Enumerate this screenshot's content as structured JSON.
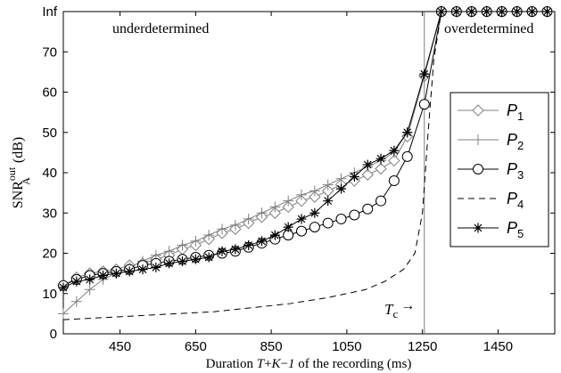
{
  "chart_data": {
    "type": "line",
    "xlabel": {
      "prefix": "Duration ",
      "var1": "T",
      "plus1": "+",
      "var2": "K",
      "minus": "−",
      "var3": "1",
      "suffix": " of the recording (ms)"
    },
    "ylabel": {
      "base": "SNR",
      "sup": "out",
      "sub": "A",
      "unit": " (dB)"
    },
    "xlim": [
      300,
      1600
    ],
    "ylim": [
      0,
      80
    ],
    "xticks": [
      450,
      650,
      850,
      1050,
      1250,
      1450
    ],
    "xtick_labels": [
      "450",
      "650",
      "850",
      "1050",
      "1250",
      "1450"
    ],
    "yticks": [
      0,
      10,
      20,
      30,
      40,
      50,
      60,
      70,
      80
    ],
    "ytick_labels": [
      "0",
      "10",
      "20",
      "30",
      "40",
      "50",
      "60",
      "70",
      "Inf"
    ],
    "inf_value": 80,
    "annotations": {
      "left_region": "underdetermined",
      "right_region": "overdetermined",
      "tc_main": "T",
      "tc_sub": "c",
      "tc_arrow": "→",
      "tc_x": 1255
    },
    "legend_position": "right",
    "series": [
      {
        "name": "P",
        "sub": "1",
        "marker": "diamond",
        "color": "#808080",
        "dash": "",
        "x": [
          300,
          335,
          370,
          405,
          440,
          475,
          510,
          545,
          580,
          615,
          650,
          685,
          720,
          755,
          790,
          825,
          860,
          895,
          930,
          965,
          1000,
          1035,
          1070,
          1105,
          1140,
          1175,
          1210,
          1255,
          1300,
          1340,
          1380,
          1420,
          1460,
          1500,
          1540,
          1580
        ],
        "y": [
          12,
          14,
          15,
          15.5,
          16,
          17,
          17.5,
          18.5,
          19.5,
          21,
          22,
          23.5,
          25,
          26,
          27.5,
          29,
          30,
          31.5,
          33,
          34,
          35.5,
          37,
          38,
          39.5,
          41,
          43,
          49,
          64,
          80,
          80,
          80,
          80,
          80,
          80,
          80,
          80
        ]
      },
      {
        "name": "P",
        "sub": "2",
        "marker": "plus",
        "color": "#808080",
        "dash": "",
        "x": [
          300,
          335,
          370,
          405,
          440,
          475,
          510,
          545,
          580,
          615,
          650,
          685,
          720,
          755,
          790,
          825,
          860,
          895,
          930,
          965,
          1000,
          1035,
          1070,
          1105,
          1140,
          1175,
          1210,
          1255,
          1300,
          1340,
          1380,
          1420,
          1460,
          1500,
          1540,
          1580
        ],
        "y": [
          5,
          8,
          11,
          13.5,
          15,
          16.5,
          18,
          19.5,
          20.5,
          22,
          23,
          24.5,
          26,
          27,
          28.5,
          30,
          31.5,
          33,
          34.5,
          35.5,
          37,
          38.5,
          40,
          41.5,
          43,
          45,
          50,
          64,
          80,
          80,
          80,
          80,
          80,
          80,
          80,
          80
        ]
      },
      {
        "name": "P",
        "sub": "3",
        "marker": "circle",
        "color": "#000000",
        "dash": "",
        "x": [
          300,
          335,
          370,
          405,
          440,
          475,
          510,
          545,
          580,
          615,
          650,
          685,
          720,
          755,
          790,
          825,
          860,
          895,
          930,
          965,
          1000,
          1035,
          1070,
          1105,
          1140,
          1175,
          1210,
          1255,
          1300,
          1340,
          1380,
          1420,
          1460,
          1500,
          1540,
          1580
        ],
        "y": [
          12,
          13.5,
          14.5,
          15,
          15.5,
          16,
          17,
          17.5,
          18,
          18.5,
          19,
          19.5,
          20,
          20.5,
          21.5,
          22.5,
          23.5,
          24.5,
          25.5,
          26.5,
          27.5,
          28.5,
          29.5,
          31,
          33,
          38,
          44,
          57,
          80,
          80,
          80,
          80,
          80,
          80,
          80,
          80
        ]
      },
      {
        "name": "P",
        "sub": "4",
        "marker": "none",
        "color": "#000000",
        "dash": "7,5",
        "x": [
          300,
          400,
          500,
          600,
          700,
          800,
          900,
          1000,
          1050,
          1100,
          1150,
          1200,
          1230,
          1250,
          1265,
          1280,
          1300
        ],
        "y": [
          3.5,
          4,
          4.5,
          5,
          5.5,
          6.5,
          7.5,
          9,
          10,
          11,
          13,
          16,
          20,
          30,
          50,
          68,
          80
        ]
      },
      {
        "name": "P",
        "sub": "5",
        "marker": "star",
        "color": "#000000",
        "dash": "",
        "x": [
          300,
          335,
          370,
          405,
          440,
          475,
          510,
          545,
          580,
          615,
          650,
          685,
          720,
          755,
          790,
          825,
          860,
          895,
          930,
          965,
          1000,
          1035,
          1070,
          1105,
          1140,
          1175,
          1210,
          1255,
          1300,
          1340,
          1380,
          1420,
          1460,
          1500,
          1540,
          1580
        ],
        "y": [
          11.5,
          13,
          13.5,
          14.5,
          15,
          15.5,
          16,
          16.5,
          17.5,
          18,
          18.5,
          19,
          20.5,
          21,
          22,
          23,
          24.5,
          26.5,
          28.5,
          30,
          33,
          36,
          39,
          42,
          43.5,
          45.5,
          50,
          64.5,
          80,
          80,
          80,
          80,
          80,
          80,
          80,
          80
        ]
      }
    ]
  }
}
